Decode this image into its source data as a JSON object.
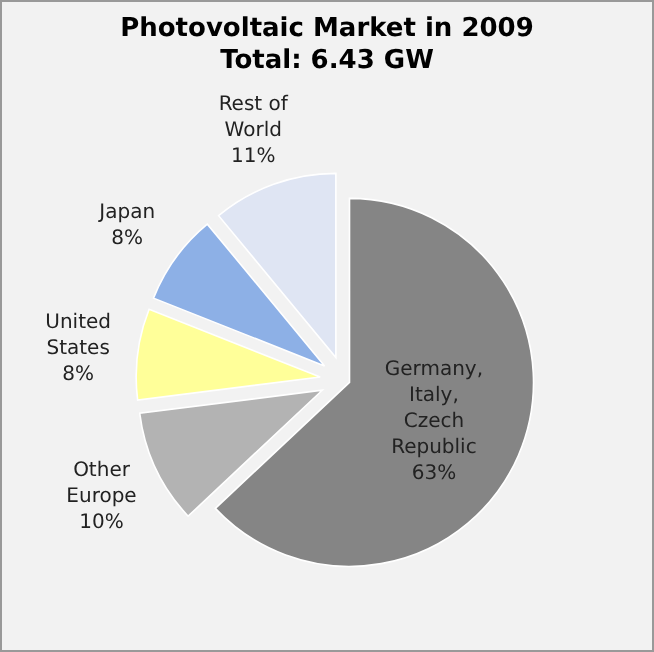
{
  "chart_data": {
    "type": "pie",
    "title": "Photovoltaic Market in 2009",
    "subtitle": "Total: 6.43 GW",
    "categories": [
      "Germany, Italy, Czech Republic",
      "Other Europe",
      "United States",
      "Japan",
      "Rest of World"
    ],
    "values": [
      63,
      10,
      8,
      8,
      11
    ],
    "colors": [
      "#858585",
      "#b3b3b3",
      "#ffff99",
      "#8db0e6",
      "#dfe5f3"
    ],
    "value_labels": [
      "63%",
      "10%",
      "8%",
      "8%",
      "11%"
    ]
  }
}
